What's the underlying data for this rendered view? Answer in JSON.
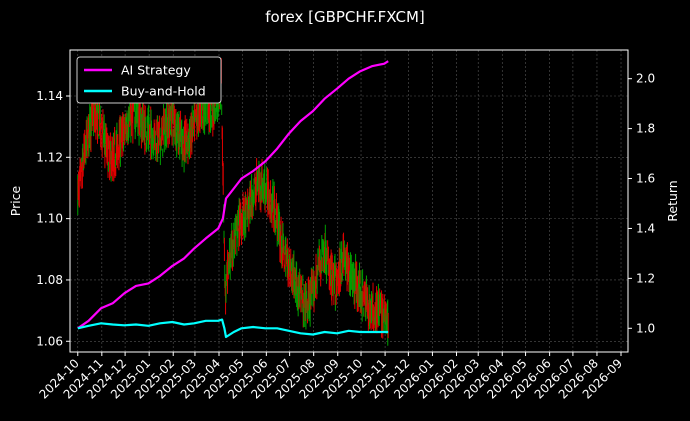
{
  "chart_data": {
    "type": "line",
    "title": "forex [GBPCHF.FXCM]",
    "ylabel_left": "Price",
    "ylabel_right": "Return",
    "grid": true,
    "legend_placement": "top-left",
    "background": "#000000",
    "ylim_left": [
      1.0565,
      1.155
    ],
    "ylim_right": [
      0.905,
      2.115
    ],
    "y_ticks_left": [
      "1.06",
      "1.08",
      "1.10",
      "1.12",
      "1.14"
    ],
    "y_ticks_right": [
      "1.0",
      "1.2",
      "1.4",
      "1.6",
      "1.8",
      "2.0"
    ],
    "x_ticks": [
      "2024-10",
      "2024-11",
      "2024-12",
      "2025-01",
      "2025-02",
      "2025-03",
      "2025-04",
      "2025-05",
      "2025-06",
      "2025-07",
      "2025-08",
      "2025-09",
      "2025-10",
      "2025-11",
      "2025-12",
      "2026-01",
      "2026-02",
      "2026-03",
      "2026-04",
      "2026-05",
      "2026-06",
      "2026-07",
      "2026-08",
      "2026-09"
    ],
    "price_candles_up_color": "#00a000",
    "price_candles_down_color": "#e00000",
    "price_path": [
      [
        "2024-10-01",
        1.108
      ],
      [
        "2024-10-08",
        1.118
      ],
      [
        "2024-10-15",
        1.128
      ],
      [
        "2024-10-22",
        1.135
      ],
      [
        "2024-10-31",
        1.13
      ],
      [
        "2024-11-08",
        1.122
      ],
      [
        "2024-11-15",
        1.119
      ],
      [
        "2024-11-22",
        1.124
      ],
      [
        "2024-11-30",
        1.128
      ],
      [
        "2024-12-08",
        1.133
      ],
      [
        "2024-12-15",
        1.135
      ],
      [
        "2024-12-22",
        1.131
      ],
      [
        "2024-12-31",
        1.128
      ],
      [
        "2025-01-08",
        1.127
      ],
      [
        "2025-01-15",
        1.125
      ],
      [
        "2025-01-22",
        1.13
      ],
      [
        "2025-01-31",
        1.133
      ],
      [
        "2025-02-08",
        1.128
      ],
      [
        "2025-02-15",
        1.124
      ],
      [
        "2025-02-22",
        1.126
      ],
      [
        "2025-02-28",
        1.13
      ],
      [
        "2025-03-08",
        1.136
      ],
      [
        "2025-03-15",
        1.137
      ],
      [
        "2025-03-22",
        1.134
      ],
      [
        "2025-03-31",
        1.14
      ],
      [
        "2025-04-04",
        1.145
      ],
      [
        "2025-04-07",
        1.105
      ],
      [
        "2025-04-09",
        1.075
      ],
      [
        "2025-04-14",
        1.086
      ],
      [
        "2025-04-22",
        1.094
      ],
      [
        "2025-04-30",
        1.1
      ],
      [
        "2025-05-08",
        1.102
      ],
      [
        "2025-05-15",
        1.108
      ],
      [
        "2025-05-22",
        1.112
      ],
      [
        "2025-05-31",
        1.11
      ],
      [
        "2025-06-08",
        1.105
      ],
      [
        "2025-06-15",
        1.1
      ],
      [
        "2025-06-22",
        1.09
      ],
      [
        "2025-06-30",
        1.085
      ],
      [
        "2025-07-08",
        1.08
      ],
      [
        "2025-07-15",
        1.075
      ],
      [
        "2025-07-22",
        1.071
      ],
      [
        "2025-07-31",
        1.076
      ],
      [
        "2025-08-08",
        1.085
      ],
      [
        "2025-08-15",
        1.09
      ],
      [
        "2025-08-22",
        1.082
      ],
      [
        "2025-08-31",
        1.078
      ],
      [
        "2025-09-08",
        1.088
      ],
      [
        "2025-09-15",
        1.083
      ],
      [
        "2025-09-22",
        1.08
      ],
      [
        "2025-09-30",
        1.076
      ],
      [
        "2025-10-08",
        1.073
      ],
      [
        "2025-10-15",
        1.07
      ],
      [
        "2025-10-22",
        1.071
      ],
      [
        "2025-10-31",
        1.068
      ],
      [
        "2025-11-05",
        1.067
      ]
    ],
    "series": [
      {
        "name": "AI Strategy",
        "color": "#ff00ff",
        "points": [
          [
            "2024-10-01",
            1.0
          ],
          [
            "2024-10-15",
            1.03
          ],
          [
            "2024-10-31",
            1.08
          ],
          [
            "2024-11-15",
            1.1
          ],
          [
            "2024-11-30",
            1.14
          ],
          [
            "2024-12-15",
            1.17
          ],
          [
            "2024-12-31",
            1.18
          ],
          [
            "2025-01-15",
            1.21
          ],
          [
            "2025-01-31",
            1.25
          ],
          [
            "2025-02-15",
            1.28
          ],
          [
            "2025-02-28",
            1.32
          ],
          [
            "2025-03-15",
            1.36
          ],
          [
            "2025-03-31",
            1.4
          ],
          [
            "2025-04-06",
            1.44
          ],
          [
            "2025-04-10",
            1.52
          ],
          [
            "2025-04-20",
            1.56
          ],
          [
            "2025-04-30",
            1.6
          ],
          [
            "2025-05-15",
            1.63
          ],
          [
            "2025-05-31",
            1.67
          ],
          [
            "2025-06-15",
            1.72
          ],
          [
            "2025-06-30",
            1.78
          ],
          [
            "2025-07-15",
            1.83
          ],
          [
            "2025-07-31",
            1.87
          ],
          [
            "2025-08-15",
            1.92
          ],
          [
            "2025-08-31",
            1.96
          ],
          [
            "2025-09-15",
            2.0
          ],
          [
            "2025-09-30",
            2.03
          ],
          [
            "2025-10-15",
            2.05
          ],
          [
            "2025-10-31",
            2.06
          ],
          [
            "2025-11-05",
            2.07
          ]
        ]
      },
      {
        "name": "Buy-and-Hold",
        "color": "#00ffff",
        "points": [
          [
            "2024-10-01",
            1.0
          ],
          [
            "2024-10-15",
            1.01
          ],
          [
            "2024-10-31",
            1.02
          ],
          [
            "2024-11-15",
            1.015
          ],
          [
            "2024-11-30",
            1.012
          ],
          [
            "2024-12-15",
            1.015
          ],
          [
            "2024-12-31",
            1.01
          ],
          [
            "2025-01-15",
            1.02
          ],
          [
            "2025-01-31",
            1.025
          ],
          [
            "2025-02-15",
            1.015
          ],
          [
            "2025-02-28",
            1.02
          ],
          [
            "2025-03-15",
            1.03
          ],
          [
            "2025-03-31",
            1.03
          ],
          [
            "2025-04-05",
            1.035
          ],
          [
            "2025-04-08",
            1.0
          ],
          [
            "2025-04-10",
            0.965
          ],
          [
            "2025-04-20",
            0.985
          ],
          [
            "2025-04-30",
            1.0
          ],
          [
            "2025-05-15",
            1.005
          ],
          [
            "2025-05-31",
            1.0
          ],
          [
            "2025-06-15",
            1.0
          ],
          [
            "2025-06-30",
            0.99
          ],
          [
            "2025-07-15",
            0.98
          ],
          [
            "2025-07-31",
            0.975
          ],
          [
            "2025-08-15",
            0.985
          ],
          [
            "2025-08-31",
            0.98
          ],
          [
            "2025-09-15",
            0.99
          ],
          [
            "2025-09-30",
            0.985
          ],
          [
            "2025-10-15",
            0.985
          ],
          [
            "2025-10-31",
            0.985
          ],
          [
            "2025-11-05",
            0.985
          ]
        ]
      }
    ]
  }
}
